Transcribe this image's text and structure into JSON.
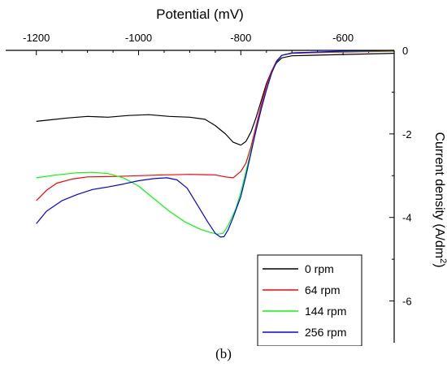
{
  "caption": "(b)",
  "chart_data": {
    "type": "line",
    "title": "",
    "xlabel": "Potential (mV)",
    "ylabel": "Current density (A/dm²)",
    "xlim": [
      -1260,
      -500
    ],
    "ylim": [
      -7,
      0
    ],
    "x_axis_position": "top",
    "y_axis_position": "right",
    "y_reversed_downward": true,
    "xticks": [
      -1200,
      -1000,
      -800,
      -600
    ],
    "yticks": [
      0,
      -2,
      -4,
      -6
    ],
    "grid": false,
    "legend_position": "bottom-right",
    "series": [
      {
        "name": "0 rpm",
        "color": "#000000",
        "points": [
          [
            -1200,
            -1.7
          ],
          [
            -1170,
            -1.66
          ],
          [
            -1140,
            -1.62
          ],
          [
            -1100,
            -1.58
          ],
          [
            -1060,
            -1.6
          ],
          [
            -1020,
            -1.56
          ],
          [
            -980,
            -1.54
          ],
          [
            -940,
            -1.58
          ],
          [
            -900,
            -1.6
          ],
          [
            -870,
            -1.65
          ],
          [
            -850,
            -1.8
          ],
          [
            -830,
            -2.0
          ],
          [
            -815,
            -2.2
          ],
          [
            -800,
            -2.27
          ],
          [
            -790,
            -2.18
          ],
          [
            -780,
            -1.95
          ],
          [
            -770,
            -1.6
          ],
          [
            -760,
            -1.2
          ],
          [
            -750,
            -0.8
          ],
          [
            -740,
            -0.5
          ],
          [
            -730,
            -0.3
          ],
          [
            -720,
            -0.18
          ],
          [
            -700,
            -0.13
          ],
          [
            -600,
            -0.1
          ],
          [
            -500,
            -0.07
          ]
        ]
      },
      {
        "name": "64 rpm",
        "color": "#ff0000",
        "points": [
          [
            -1200,
            -3.6
          ],
          [
            -1180,
            -3.35
          ],
          [
            -1160,
            -3.18
          ],
          [
            -1130,
            -3.08
          ],
          [
            -1100,
            -3.03
          ],
          [
            -1050,
            -3.02
          ],
          [
            -1000,
            -3.0
          ],
          [
            -950,
            -2.98
          ],
          [
            -900,
            -2.97
          ],
          [
            -850,
            -2.98
          ],
          [
            -830,
            -3.03
          ],
          [
            -815,
            -3.05
          ],
          [
            -800,
            -2.9
          ],
          [
            -790,
            -2.7
          ],
          [
            -780,
            -2.3
          ],
          [
            -770,
            -1.8
          ],
          [
            -760,
            -1.3
          ],
          [
            -750,
            -0.85
          ],
          [
            -740,
            -0.5
          ],
          [
            -730,
            -0.25
          ],
          [
            -720,
            -0.12
          ],
          [
            -700,
            -0.07
          ],
          [
            -600,
            -0.04
          ],
          [
            -500,
            -0.02
          ]
        ]
      },
      {
        "name": "144 rpm",
        "color": "#00ff00",
        "points": [
          [
            -1200,
            -3.05
          ],
          [
            -1160,
            -2.98
          ],
          [
            -1120,
            -2.93
          ],
          [
            -1090,
            -2.92
          ],
          [
            -1060,
            -2.95
          ],
          [
            -1030,
            -3.05
          ],
          [
            -1000,
            -3.25
          ],
          [
            -970,
            -3.55
          ],
          [
            -940,
            -3.85
          ],
          [
            -910,
            -4.1
          ],
          [
            -880,
            -4.28
          ],
          [
            -860,
            -4.36
          ],
          [
            -845,
            -4.4
          ],
          [
            -835,
            -4.38
          ],
          [
            -825,
            -4.2
          ],
          [
            -810,
            -3.8
          ],
          [
            -800,
            -3.4
          ],
          [
            -790,
            -2.9
          ],
          [
            -780,
            -2.4
          ],
          [
            -770,
            -1.9
          ],
          [
            -760,
            -1.4
          ],
          [
            -750,
            -0.95
          ],
          [
            -740,
            -0.55
          ],
          [
            -730,
            -0.28
          ],
          [
            -720,
            -0.12
          ],
          [
            -700,
            -0.06
          ],
          [
            -600,
            -0.03
          ],
          [
            -500,
            -0.01
          ]
        ]
      },
      {
        "name": "256 rpm",
        "color": "#0000ff",
        "points": [
          [
            -1200,
            -4.15
          ],
          [
            -1180,
            -3.85
          ],
          [
            -1150,
            -3.6
          ],
          [
            -1120,
            -3.45
          ],
          [
            -1090,
            -3.33
          ],
          [
            -1060,
            -3.27
          ],
          [
            -1030,
            -3.2
          ],
          [
            -1000,
            -3.12
          ],
          [
            -970,
            -3.07
          ],
          [
            -945,
            -3.05
          ],
          [
            -925,
            -3.1
          ],
          [
            -905,
            -3.3
          ],
          [
            -885,
            -3.7
          ],
          [
            -865,
            -4.1
          ],
          [
            -850,
            -4.38
          ],
          [
            -840,
            -4.47
          ],
          [
            -833,
            -4.46
          ],
          [
            -825,
            -4.3
          ],
          [
            -815,
            -4.0
          ],
          [
            -800,
            -3.5
          ],
          [
            -790,
            -3.0
          ],
          [
            -780,
            -2.45
          ],
          [
            -770,
            -1.9
          ],
          [
            -760,
            -1.4
          ],
          [
            -750,
            -0.95
          ],
          [
            -740,
            -0.55
          ],
          [
            -730,
            -0.27
          ],
          [
            -720,
            -0.12
          ],
          [
            -700,
            -0.06
          ],
          [
            -600,
            -0.02
          ],
          [
            -500,
            0.0
          ]
        ]
      }
    ]
  }
}
